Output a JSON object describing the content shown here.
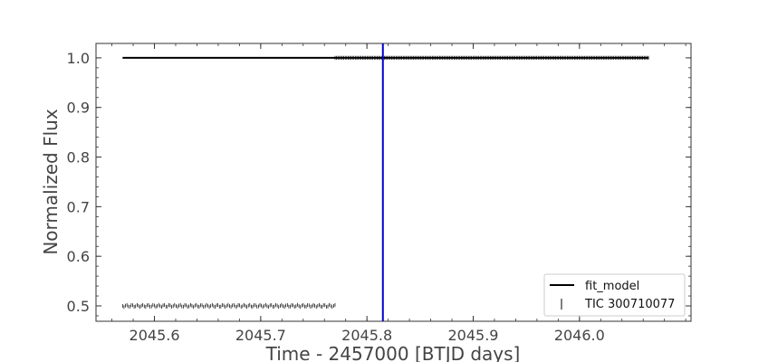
{
  "chart_data": {
    "type": "line",
    "xlabel": "Time - 2457000 [BTJD days]",
    "ylabel": "Normalized Flux",
    "xlim": [
      2045.545,
      2046.105
    ],
    "ylim": [
      0.469,
      1.029
    ],
    "xticks": [
      2045.6,
      2045.7,
      2045.8,
      2045.9,
      2046.0
    ],
    "xtick_labels": [
      "2045.6",
      "2045.7",
      "2045.8",
      "2045.9",
      "2046.0"
    ],
    "yticks": [
      0.5,
      0.6,
      0.7,
      0.8,
      0.9,
      1.0
    ],
    "ytick_labels": [
      "0.5",
      "0.6",
      "0.7",
      "0.8",
      "0.9",
      "1.0"
    ],
    "legend_position": "lower-right",
    "grid": false,
    "series": [
      {
        "name": "fit_model",
        "kind": "line",
        "color": "#000000",
        "x": [
          2045.57,
          2046.065
        ],
        "y": [
          1.0,
          1.0
        ]
      },
      {
        "name": "TIC 300710077",
        "kind": "errorbar-points",
        "color": "#000000",
        "segments": [
          {
            "x_range": [
              2045.57,
              2045.77
            ],
            "y": 0.5
          },
          {
            "x_range": [
              2045.77,
              2046.065
            ],
            "y": 1.0
          }
        ]
      }
    ],
    "vline": {
      "x": 2045.815,
      "color": "#0000cc"
    }
  }
}
